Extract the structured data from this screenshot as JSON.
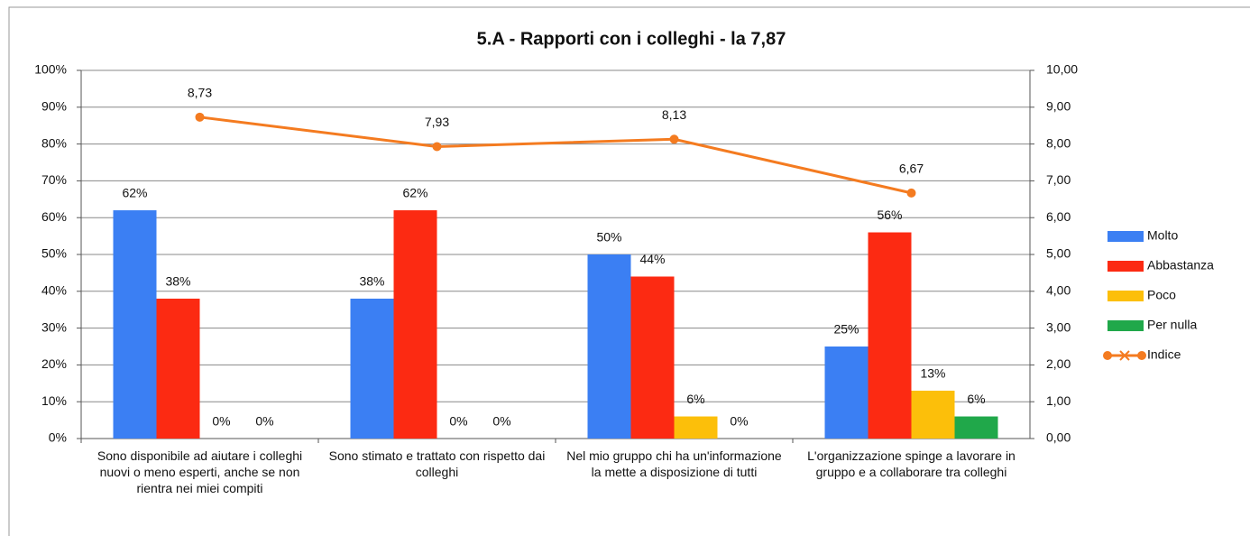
{
  "chart_data": {
    "type": "bar",
    "title": "5.A - Rapporti con i colleghi - la 7,87",
    "categories": [
      "Sono disponibile ad aiutare i colleghi nuovi o meno esperti, anche se non rientra nei miei compiti",
      "Sono stimato e trattato con rispetto dai colleghi",
      "Nel mio gruppo chi ha un'informazione la mette a disposizione di tutti",
      "L'organizzazione spinge a lavorare in gruppo e a collaborare tra colleghi"
    ],
    "series": [
      {
        "name": "Molto",
        "color": "#3b7ff3",
        "values": [
          62,
          38,
          50,
          25
        ],
        "value_labels": [
          "62%",
          "38%",
          "50%",
          "25%"
        ]
      },
      {
        "name": "Abbastanza",
        "color": "#fc2a12",
        "values": [
          38,
          62,
          44,
          56
        ],
        "value_labels": [
          "38%",
          "62%",
          "44%",
          "56%"
        ]
      },
      {
        "name": "Poco",
        "color": "#fcbf0a",
        "values": [
          0,
          0,
          6,
          13
        ],
        "value_labels": [
          "0%",
          "0%",
          "6%",
          "13%"
        ]
      },
      {
        "name": "Per nulla",
        "color": "#20a84a",
        "values": [
          0,
          0,
          0,
          6
        ],
        "value_labels": [
          "0%",
          "0%",
          "0%",
          "6%"
        ]
      },
      {
        "name": "Indice",
        "type": "line",
        "axis": "y2",
        "color": "#f47b20",
        "values": [
          8.73,
          7.93,
          8.13,
          6.67
        ],
        "value_labels": [
          "8,73",
          "7,93",
          "8,13",
          "6,67"
        ]
      }
    ],
    "ylim": [
      0,
      100
    ],
    "yticks": [
      {
        "value": 0,
        "label": "0%"
      },
      {
        "value": 10,
        "label": "10%"
      },
      {
        "value": 20,
        "label": "20%"
      },
      {
        "value": 30,
        "label": "30%"
      },
      {
        "value": 40,
        "label": "40%"
      },
      {
        "value": 50,
        "label": "50%"
      },
      {
        "value": 60,
        "label": "60%"
      },
      {
        "value": 70,
        "label": "70%"
      },
      {
        "value": 80,
        "label": "80%"
      },
      {
        "value": 90,
        "label": "90%"
      },
      {
        "value": 100,
        "label": "100%"
      }
    ],
    "y2lim": [
      0,
      10
    ],
    "y2ticks": [
      {
        "value": 0,
        "label": "0,00"
      },
      {
        "value": 1,
        "label": "1,00"
      },
      {
        "value": 2,
        "label": "2,00"
      },
      {
        "value": 3,
        "label": "3,00"
      },
      {
        "value": 4,
        "label": "4,00"
      },
      {
        "value": 5,
        "label": "5,00"
      },
      {
        "value": 6,
        "label": "6,00"
      },
      {
        "value": 7,
        "label": "7,00"
      },
      {
        "value": 8,
        "label": "8,00"
      },
      {
        "value": 9,
        "label": "9,00"
      },
      {
        "value": 10,
        "label": "10,00"
      }
    ],
    "grid": true,
    "legend": "right"
  }
}
